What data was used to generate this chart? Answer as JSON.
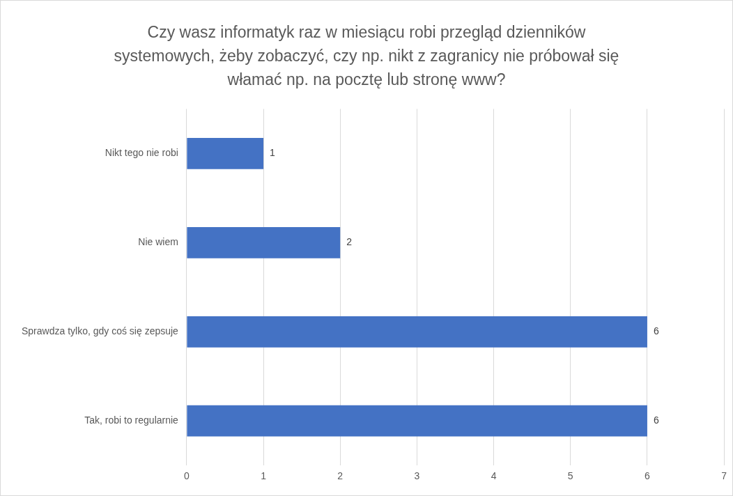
{
  "chart_data": {
    "type": "bar",
    "orientation": "horizontal",
    "title": "Czy wasz informatyk raz w miesiącu robi przegląd dzienników systemowych, żeby zobaczyć, czy np. nikt z zagranicy nie próbował się włamać np. na pocztę lub stronę www?",
    "categories": [
      "Nikt tego nie robi",
      "Nie wiem",
      "Sprawdza tylko, gdy coś się zepsuje",
      "Tak, robi to regularnie"
    ],
    "values": [
      1,
      2,
      6,
      6
    ],
    "color": "#4472c4",
    "xlim": [
      0,
      7
    ],
    "xticks": [
      0,
      1,
      2,
      3,
      4,
      5,
      6,
      7
    ],
    "grid": "x",
    "data_labels": true
  }
}
